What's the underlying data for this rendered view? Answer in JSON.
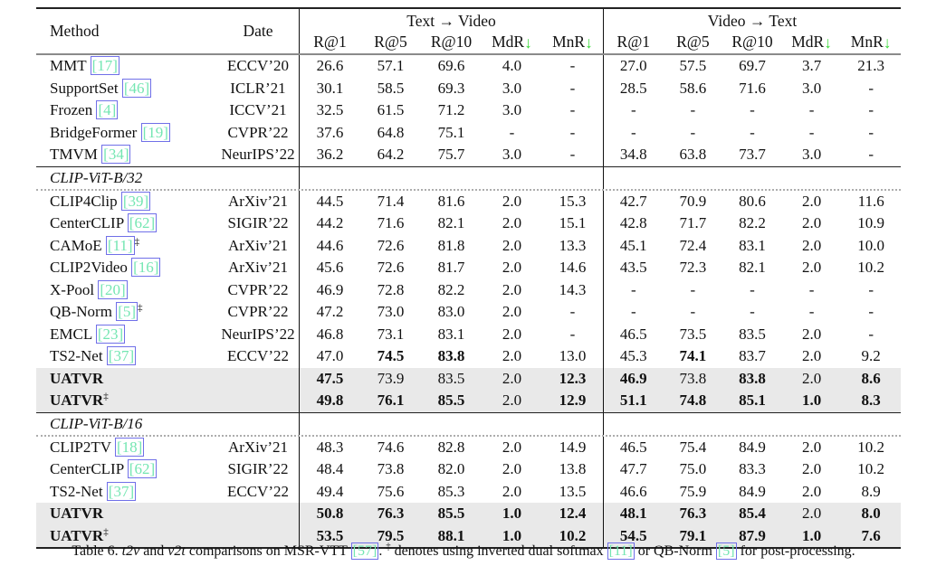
{
  "colors": {
    "citation_text": "#74e6b2",
    "citation_border": "#7070e8",
    "arrow_green": "#3ddb3d",
    "highlight_row": "#e9e9e9"
  },
  "table": {
    "method_header": "Method",
    "date_header": "Date",
    "groups": [
      {
        "label": "Text → Video"
      },
      {
        "label": "Video → Text"
      }
    ],
    "subheaders": [
      {
        "key": "r1",
        "label": "R@1",
        "arrow": false
      },
      {
        "key": "r5",
        "label": "R@5",
        "arrow": false
      },
      {
        "key": "r10",
        "label": "R@10",
        "arrow": false
      },
      {
        "key": "mdr",
        "label": "MdR",
        "arrow": true
      },
      {
        "key": "mnr",
        "label": "MnR",
        "arrow": true
      }
    ],
    "sections": [
      {
        "header": null,
        "rows": [
          {
            "method": "MMT",
            "cite": "[17]",
            "sup": null,
            "date": "ECCV’20",
            "hl": false,
            "boldName": false,
            "cells": [
              "26.6",
              "57.1",
              "69.6",
              "4.0",
              "-",
              "27.0",
              "57.5",
              "69.7",
              "3.7",
              "21.3"
            ]
          },
          {
            "method": "SupportSet",
            "cite": "[46]",
            "sup": null,
            "date": "ICLR’21",
            "hl": false,
            "boldName": false,
            "cells": [
              "30.1",
              "58.5",
              "69.3",
              "3.0",
              "-",
              "28.5",
              "58.6",
              "71.6",
              "3.0",
              "-"
            ]
          },
          {
            "method": "Frozen",
            "cite": "[4]",
            "sup": null,
            "date": "ICCV’21",
            "hl": false,
            "boldName": false,
            "cells": [
              "32.5",
              "61.5",
              "71.2",
              "3.0",
              "-",
              "-",
              "-",
              "-",
              "-",
              "-"
            ]
          },
          {
            "method": "BridgeFormer",
            "cite": "[19]",
            "sup": null,
            "date": "CVPR’22",
            "hl": false,
            "boldName": false,
            "cells": [
              "37.6",
              "64.8",
              "75.1",
              "-",
              "-",
              "-",
              "-",
              "-",
              "-",
              "-"
            ]
          },
          {
            "method": "TMVM",
            "cite": "[34]",
            "sup": null,
            "date": "NeurIPS’22",
            "hl": false,
            "boldName": false,
            "cells": [
              "36.2",
              "64.2",
              "75.7",
              "3.0",
              "-",
              "34.8",
              "63.8",
              "73.7",
              "3.0",
              "-"
            ]
          }
        ]
      },
      {
        "header": "CLIP-ViT-B/32",
        "rows": [
          {
            "method": "CLIP4Clip",
            "cite": "[39]",
            "sup": null,
            "date": "ArXiv’21",
            "hl": false,
            "boldName": false,
            "cells": [
              "44.5",
              "71.4",
              "81.6",
              "2.0",
              "15.3",
              "42.7",
              "70.9",
              "80.6",
              "2.0",
              "11.6"
            ]
          },
          {
            "method": "CenterCLIP",
            "cite": "[62]",
            "sup": null,
            "date": "SIGIR’22",
            "hl": false,
            "boldName": false,
            "cells": [
              "44.2",
              "71.6",
              "82.1",
              "2.0",
              "15.1",
              "42.8",
              "71.7",
              "82.2",
              "2.0",
              "10.9"
            ]
          },
          {
            "method": "CAMoE",
            "cite": "[11]",
            "sup": "cite",
            "date": "ArXiv’21",
            "hl": false,
            "boldName": false,
            "cells": [
              "44.6",
              "72.6",
              "81.8",
              "2.0",
              "13.3",
              "45.1",
              "72.4",
              "83.1",
              "2.0",
              "10.0"
            ]
          },
          {
            "method": "CLIP2Video",
            "cite": "[16]",
            "sup": null,
            "date": "ArXiv’21",
            "hl": false,
            "boldName": false,
            "cells": [
              "45.6",
              "72.6",
              "81.7",
              "2.0",
              "14.6",
              "43.5",
              "72.3",
              "82.1",
              "2.0",
              "10.2"
            ]
          },
          {
            "method": "X-Pool",
            "cite": "[20]",
            "sup": null,
            "date": "CVPR’22",
            "hl": false,
            "boldName": false,
            "cells": [
              "46.9",
              "72.8",
              "82.2",
              "2.0",
              "14.3",
              "-",
              "-",
              "-",
              "-",
              "-"
            ]
          },
          {
            "method": "QB-Norm",
            "cite": "[5]",
            "sup": "cite",
            "date": "CVPR’22",
            "hl": false,
            "boldName": false,
            "cells": [
              "47.2",
              "73.0",
              "83.0",
              "2.0",
              "-",
              "-",
              "-",
              "-",
              "-",
              "-"
            ]
          },
          {
            "method": "EMCL",
            "cite": "[23]",
            "sup": null,
            "date": "NeurIPS’22",
            "hl": false,
            "boldName": false,
            "cells": [
              "46.8",
              "73.1",
              "83.1",
              "2.0",
              "-",
              "46.5",
              "73.5",
              "83.5",
              "2.0",
              "-"
            ]
          },
          {
            "method": "TS2-Net",
            "cite": "[37]",
            "sup": null,
            "date": "ECCV’22",
            "hl": false,
            "boldName": false,
            "cells": [
              "47.0",
              "*74.5",
              "*83.8",
              "2.0",
              "13.0",
              "45.3",
              "*74.1",
              "83.7",
              "2.0",
              "9.2"
            ]
          },
          {
            "method": "UATVR",
            "cite": null,
            "sup": null,
            "date": "",
            "hl": true,
            "boldName": true,
            "cells": [
              "*47.5",
              "73.9",
              "83.5",
              "2.0",
              "*12.3",
              "*46.9",
              "73.8",
              "*83.8",
              "2.0",
              "*8.6"
            ]
          },
          {
            "method": "UATVR",
            "cite": null,
            "sup": "name",
            "date": "",
            "hl": true,
            "boldName": true,
            "cells": [
              "*49.8",
              "*76.1",
              "*85.5",
              "2.0",
              "*12.9",
              "*51.1",
              "*74.8",
              "*85.1",
              "*1.0",
              "*8.3"
            ]
          }
        ]
      },
      {
        "header": "CLIP-ViT-B/16",
        "rows": [
          {
            "method": "CLIP2TV",
            "cite": "[18]",
            "sup": null,
            "date": "ArXiv’21",
            "hl": false,
            "boldName": false,
            "cells": [
              "48.3",
              "74.6",
              "82.8",
              "2.0",
              "14.9",
              "46.5",
              "75.4",
              "84.9",
              "2.0",
              "10.2"
            ]
          },
          {
            "method": "CenterCLIP",
            "cite": "[62]",
            "sup": null,
            "date": "SIGIR’22",
            "hl": false,
            "boldName": false,
            "cells": [
              "48.4",
              "73.8",
              "82.0",
              "2.0",
              "13.8",
              "47.7",
              "75.0",
              "83.3",
              "2.0",
              "10.2"
            ]
          },
          {
            "method": "TS2-Net",
            "cite": "[37]",
            "sup": null,
            "date": "ECCV’22",
            "hl": false,
            "boldName": false,
            "cells": [
              "49.4",
              "75.6",
              "85.3",
              "2.0",
              "13.5",
              "46.6",
              "75.9",
              "84.9",
              "2.0",
              "8.9"
            ]
          },
          {
            "method": "UATVR",
            "cite": null,
            "sup": null,
            "date": "",
            "hl": true,
            "boldName": true,
            "cells": [
              "*50.8",
              "*76.3",
              "*85.5",
              "*1.0",
              "*12.4",
              "*48.1",
              "*76.3",
              "*85.4",
              "2.0",
              "*8.0"
            ]
          },
          {
            "method": "UATVR",
            "cite": null,
            "sup": "name",
            "date": "",
            "hl": true,
            "boldName": true,
            "cells": [
              "*53.5",
              "*79.5",
              "*88.1",
              "*1.0",
              "*10.2",
              "*54.5",
              "*79.1",
              "*87.9",
              "*1.0",
              "*7.6"
            ]
          }
        ]
      }
    ]
  },
  "caption": {
    "parts": [
      {
        "t": "Table 6. "
      },
      {
        "t": "t2v",
        "i": true
      },
      {
        "t": " and "
      },
      {
        "t": "v2t",
        "i": true
      },
      {
        "t": " comparisons on MSR-VTT "
      },
      {
        "t": "[57]",
        "cite": true
      },
      {
        "t": ". "
      },
      {
        "t": "‡",
        "sup": true
      },
      {
        "t": " denotes using inverted dual softmax "
      },
      {
        "t": "[11]",
        "cite": true
      },
      {
        "t": " or QB-Norm "
      },
      {
        "t": "[5]",
        "cite": true
      },
      {
        "t": " for post-processing."
      }
    ]
  }
}
